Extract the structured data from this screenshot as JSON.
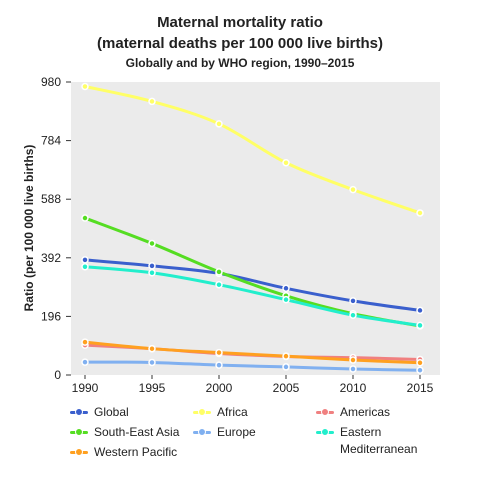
{
  "chart_data": {
    "type": "line",
    "title": "Maternal mortality ratio",
    "subtitle": "(maternal deaths per 100 000 live births)",
    "subtitle2": "Globally and by WHO region, 1990–2015",
    "ylabel": "Ratio (per 100 000 live births)",
    "xlabel": "",
    "x": [
      "1990",
      "1995",
      "2000",
      "2005",
      "2010",
      "2015"
    ],
    "yticks": [
      "0",
      "196",
      "392",
      "588",
      "784",
      "980"
    ],
    "ylim": [
      0,
      980
    ],
    "grid": false,
    "legend_position": "bottom",
    "series": [
      {
        "name": "Global",
        "color": "#3a5fcd",
        "values": [
          385,
          365,
          340,
          290,
          248,
          216
        ]
      },
      {
        "name": "Africa",
        "color": "#ffff66",
        "values": [
          965,
          915,
          840,
          710,
          620,
          542
        ]
      },
      {
        "name": "Americas",
        "color": "#f08080",
        "values": [
          100,
          88,
          72,
          62,
          58,
          52
        ]
      },
      {
        "name": "South-East Asia",
        "color": "#55dd22",
        "values": [
          525,
          440,
          345,
          265,
          205,
          164
        ]
      },
      {
        "name": "Europe",
        "color": "#80b0f0",
        "values": [
          43,
          42,
          33,
          27,
          20,
          16
        ]
      },
      {
        "name": "Eastern Mediterranean",
        "color": "#22eecc",
        "values": [
          362,
          342,
          302,
          252,
          200,
          166
        ]
      },
      {
        "name": "Western Pacific",
        "color": "#ffa020",
        "values": [
          110,
          88,
          75,
          63,
          50,
          41
        ]
      }
    ]
  }
}
